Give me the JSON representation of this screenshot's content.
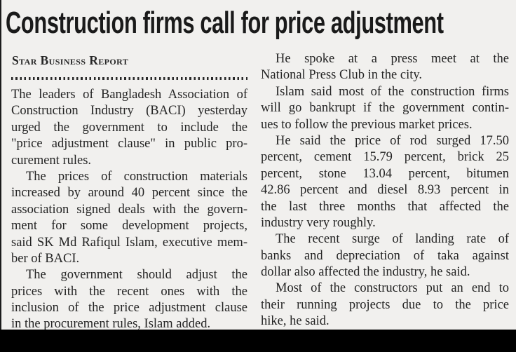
{
  "article": {
    "headline": "Construction firms call for price adjustment",
    "byline": "Star Business Report",
    "columns": {
      "left": {
        "paragraphs": [
          {
            "indent": false,
            "lines": [
              "The leaders of Bangladesh Association of",
              "Construction Industry (BACI) yesterday",
              "urged the government to include the",
              "\"price adjustment clause\" in public pro-",
              "curement rules."
            ]
          },
          {
            "indent": true,
            "lines": [
              "The prices of construction materials",
              "increased by around 40 percent since the",
              "association signed deals with the govern-",
              "ment for some development projects,",
              "said SK Md Rafiqul Islam, executive mem-",
              "ber of BACI."
            ]
          },
          {
            "indent": true,
            "lines": [
              "The government should adjust the",
              "prices with the recent ones with the",
              "inclusion of the price adjustment clause",
              "in the procurement rules, Islam added."
            ]
          }
        ]
      },
      "right": {
        "paragraphs": [
          {
            "indent": true,
            "lines": [
              "He spoke at a press meet at the",
              "National Press Club in the city."
            ]
          },
          {
            "indent": true,
            "lines": [
              "Islam said most of the construction firms",
              "will go bankrupt if the government contin-",
              "ues to follow the previous market prices."
            ]
          },
          {
            "indent": true,
            "lines": [
              "He said the price of rod surged 17.50",
              "percent, cement 15.79 percent, brick 25",
              "percent, stone 13.04 percent, bitumen",
              "42.86 percent and diesel 8.93 percent in",
              "the last three months that affected the",
              "industry very roughly."
            ]
          },
          {
            "indent": true,
            "lines": [
              "The recent surge of landing rate of",
              "banks and depreciation of taka against",
              "dollar also affected the industry, he said."
            ]
          },
          {
            "indent": true,
            "lines": [
              "Most of the constructors put an end to",
              "their running projects due to the price",
              "hike, he said."
            ]
          }
        ]
      }
    }
  },
  "colors": {
    "background": "#f1f0ee",
    "text": "#242424",
    "headline": "#1a1a1a",
    "bottom_bar": "#000000",
    "edge_line": "#1c1c1c"
  }
}
